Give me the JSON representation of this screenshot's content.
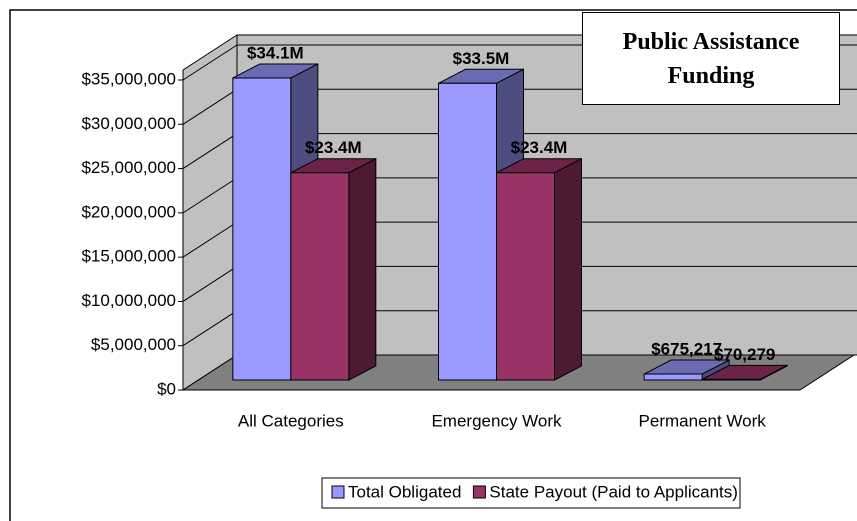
{
  "chart_data": {
    "type": "bar3d",
    "title": "Public Assistance Funding",
    "categories": [
      "All Categories",
      "Emergency Work",
      "Permanent Work"
    ],
    "series": [
      {
        "name": "Total Obligated",
        "color": "#9999ff",
        "values": [
          34100000,
          33500000,
          675217
        ],
        "value_labels": [
          "$34.1M",
          "$33.5M",
          "$675,217"
        ]
      },
      {
        "name": "State Payout (Paid to Applicants)",
        "color": "#993366",
        "values": [
          23400000,
          23400000,
          70279
        ],
        "value_labels": [
          "$23.4M",
          "$23.4M",
          "$70,279"
        ]
      }
    ],
    "ylim": [
      0,
      35000000
    ],
    "yticks": [
      {
        "value": 0,
        "label": "$0"
      },
      {
        "value": 5000000,
        "label": "$5,000,000"
      },
      {
        "value": 10000000,
        "label": "$10,000,000"
      },
      {
        "value": 15000000,
        "label": "$15,000,000"
      },
      {
        "value": 20000000,
        "label": "$20,000,000"
      },
      {
        "value": 25000000,
        "label": "$25,000,000"
      },
      {
        "value": 30000000,
        "label": "$30,000,000"
      },
      {
        "value": 35000000,
        "label": "$35,000,000"
      }
    ],
    "grid": true,
    "legend": "bottom"
  }
}
